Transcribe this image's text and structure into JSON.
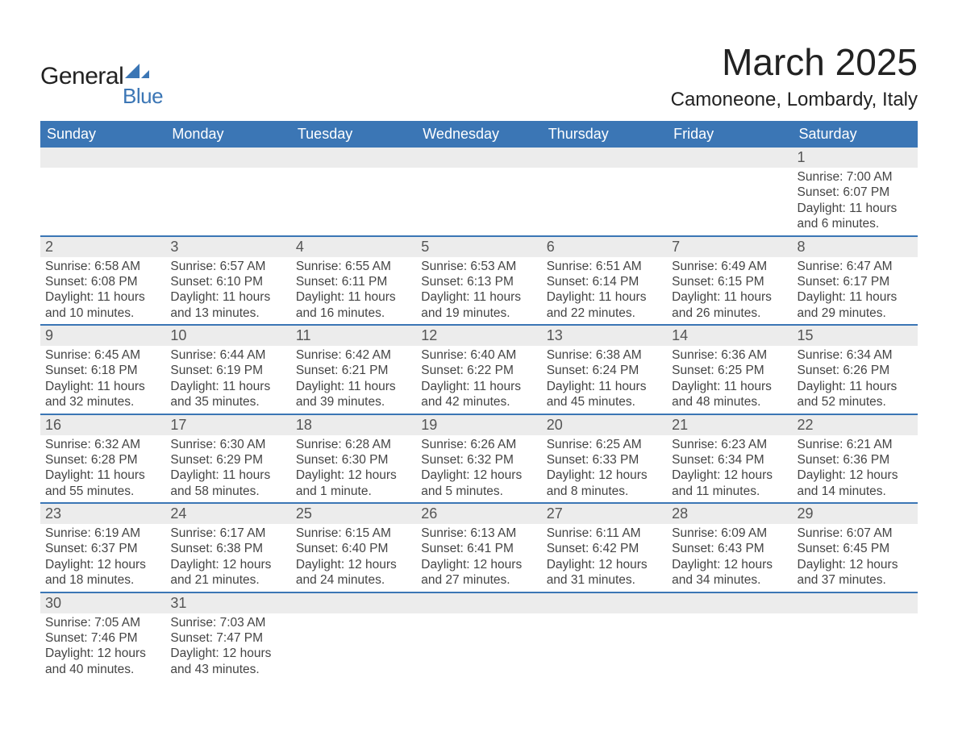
{
  "logo": {
    "text_general": "General",
    "text_blue": "Blue",
    "color": "#3b76b5"
  },
  "title": "March 2025",
  "location": "Camoneone, Lombardy, Italy",
  "colors": {
    "header_bg": "#3b76b5",
    "header_text": "#ffffff",
    "daynum_bg": "#ececec",
    "daynum_border": "#3b76b5",
    "body_text": "#444444",
    "background": "#ffffff"
  },
  "day_headers": [
    "Sunday",
    "Monday",
    "Tuesday",
    "Wednesday",
    "Thursday",
    "Friday",
    "Saturday"
  ],
  "weeks": [
    [
      {
        "day": null
      },
      {
        "day": null
      },
      {
        "day": null
      },
      {
        "day": null
      },
      {
        "day": null
      },
      {
        "day": null
      },
      {
        "day": 1,
        "sunrise": "7:00 AM",
        "sunset": "6:07 PM",
        "daylight": "11 hours and 6 minutes."
      }
    ],
    [
      {
        "day": 2,
        "sunrise": "6:58 AM",
        "sunset": "6:08 PM",
        "daylight": "11 hours and 10 minutes."
      },
      {
        "day": 3,
        "sunrise": "6:57 AM",
        "sunset": "6:10 PM",
        "daylight": "11 hours and 13 minutes."
      },
      {
        "day": 4,
        "sunrise": "6:55 AM",
        "sunset": "6:11 PM",
        "daylight": "11 hours and 16 minutes."
      },
      {
        "day": 5,
        "sunrise": "6:53 AM",
        "sunset": "6:13 PM",
        "daylight": "11 hours and 19 minutes."
      },
      {
        "day": 6,
        "sunrise": "6:51 AM",
        "sunset": "6:14 PM",
        "daylight": "11 hours and 22 minutes."
      },
      {
        "day": 7,
        "sunrise": "6:49 AM",
        "sunset": "6:15 PM",
        "daylight": "11 hours and 26 minutes."
      },
      {
        "day": 8,
        "sunrise": "6:47 AM",
        "sunset": "6:17 PM",
        "daylight": "11 hours and 29 minutes."
      }
    ],
    [
      {
        "day": 9,
        "sunrise": "6:45 AM",
        "sunset": "6:18 PM",
        "daylight": "11 hours and 32 minutes."
      },
      {
        "day": 10,
        "sunrise": "6:44 AM",
        "sunset": "6:19 PM",
        "daylight": "11 hours and 35 minutes."
      },
      {
        "day": 11,
        "sunrise": "6:42 AM",
        "sunset": "6:21 PM",
        "daylight": "11 hours and 39 minutes."
      },
      {
        "day": 12,
        "sunrise": "6:40 AM",
        "sunset": "6:22 PM",
        "daylight": "11 hours and 42 minutes."
      },
      {
        "day": 13,
        "sunrise": "6:38 AM",
        "sunset": "6:24 PM",
        "daylight": "11 hours and 45 minutes."
      },
      {
        "day": 14,
        "sunrise": "6:36 AM",
        "sunset": "6:25 PM",
        "daylight": "11 hours and 48 minutes."
      },
      {
        "day": 15,
        "sunrise": "6:34 AM",
        "sunset": "6:26 PM",
        "daylight": "11 hours and 52 minutes."
      }
    ],
    [
      {
        "day": 16,
        "sunrise": "6:32 AM",
        "sunset": "6:28 PM",
        "daylight": "11 hours and 55 minutes."
      },
      {
        "day": 17,
        "sunrise": "6:30 AM",
        "sunset": "6:29 PM",
        "daylight": "11 hours and 58 minutes."
      },
      {
        "day": 18,
        "sunrise": "6:28 AM",
        "sunset": "6:30 PM",
        "daylight": "12 hours and 1 minute."
      },
      {
        "day": 19,
        "sunrise": "6:26 AM",
        "sunset": "6:32 PM",
        "daylight": "12 hours and 5 minutes."
      },
      {
        "day": 20,
        "sunrise": "6:25 AM",
        "sunset": "6:33 PM",
        "daylight": "12 hours and 8 minutes."
      },
      {
        "day": 21,
        "sunrise": "6:23 AM",
        "sunset": "6:34 PM",
        "daylight": "12 hours and 11 minutes."
      },
      {
        "day": 22,
        "sunrise": "6:21 AM",
        "sunset": "6:36 PM",
        "daylight": "12 hours and 14 minutes."
      }
    ],
    [
      {
        "day": 23,
        "sunrise": "6:19 AM",
        "sunset": "6:37 PM",
        "daylight": "12 hours and 18 minutes."
      },
      {
        "day": 24,
        "sunrise": "6:17 AM",
        "sunset": "6:38 PM",
        "daylight": "12 hours and 21 minutes."
      },
      {
        "day": 25,
        "sunrise": "6:15 AM",
        "sunset": "6:40 PM",
        "daylight": "12 hours and 24 minutes."
      },
      {
        "day": 26,
        "sunrise": "6:13 AM",
        "sunset": "6:41 PM",
        "daylight": "12 hours and 27 minutes."
      },
      {
        "day": 27,
        "sunrise": "6:11 AM",
        "sunset": "6:42 PM",
        "daylight": "12 hours and 31 minutes."
      },
      {
        "day": 28,
        "sunrise": "6:09 AM",
        "sunset": "6:43 PM",
        "daylight": "12 hours and 34 minutes."
      },
      {
        "day": 29,
        "sunrise": "6:07 AM",
        "sunset": "6:45 PM",
        "daylight": "12 hours and 37 minutes."
      }
    ],
    [
      {
        "day": 30,
        "sunrise": "7:05 AM",
        "sunset": "7:46 PM",
        "daylight": "12 hours and 40 minutes."
      },
      {
        "day": 31,
        "sunrise": "7:03 AM",
        "sunset": "7:47 PM",
        "daylight": "12 hours and 43 minutes."
      },
      {
        "day": null
      },
      {
        "day": null
      },
      {
        "day": null
      },
      {
        "day": null
      },
      {
        "day": null
      }
    ]
  ],
  "labels": {
    "sunrise": "Sunrise:",
    "sunset": "Sunset:",
    "daylight": "Daylight:"
  }
}
